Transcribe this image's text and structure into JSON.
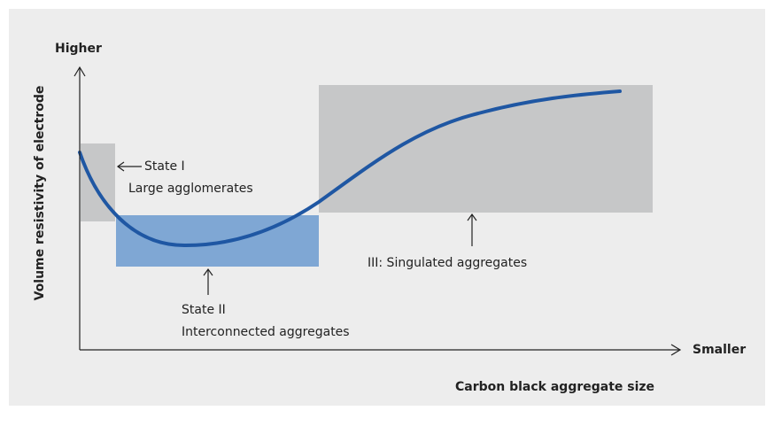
{
  "axes": {
    "y_top_label": "Higher",
    "y_title": "Volume resistivity of electrode",
    "x_right_label": "Smaller",
    "x_title": "Carbon black aggregate size"
  },
  "regions": [
    {
      "title": "State I",
      "description": "Large agglomerates"
    },
    {
      "title": "State II",
      "description": "Interconnected aggregates"
    },
    {
      "title": "III: Singulated aggregates"
    }
  ]
}
